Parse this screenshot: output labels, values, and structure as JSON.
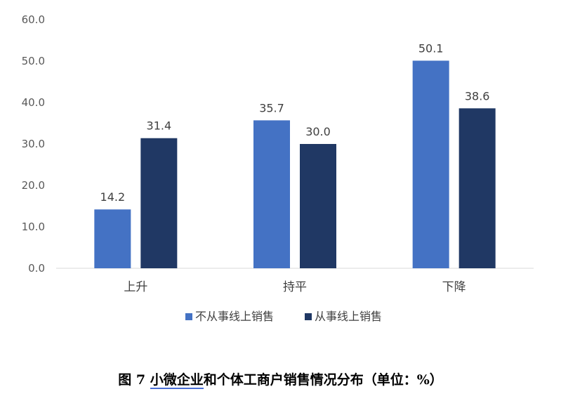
{
  "chart_data": {
    "type": "bar",
    "categories": [
      "上升",
      "持平",
      "下降"
    ],
    "series": [
      {
        "name": "不从事线上销售",
        "values": [
          14.2,
          35.7,
          50.1
        ],
        "color": "#4472C4"
      },
      {
        "name": "从事线上销售",
        "values": [
          31.4,
          30.0,
          38.6
        ],
        "color": "#203864"
      }
    ],
    "ylim": [
      0,
      60
    ],
    "yticks": [
      "0.0",
      "10.0",
      "20.0",
      "30.0",
      "40.0",
      "50.0",
      "60.0"
    ],
    "data_labels": [
      [
        "14.2",
        "35.7",
        "50.1"
      ],
      [
        "31.4",
        "30.0",
        "38.6"
      ]
    ],
    "grid": false,
    "legend_position": "bottom"
  },
  "caption": {
    "prefix": "图 7  ",
    "underlined": "小微企业",
    "rest": "和个体工商户销售情况分布（单位：%）"
  }
}
